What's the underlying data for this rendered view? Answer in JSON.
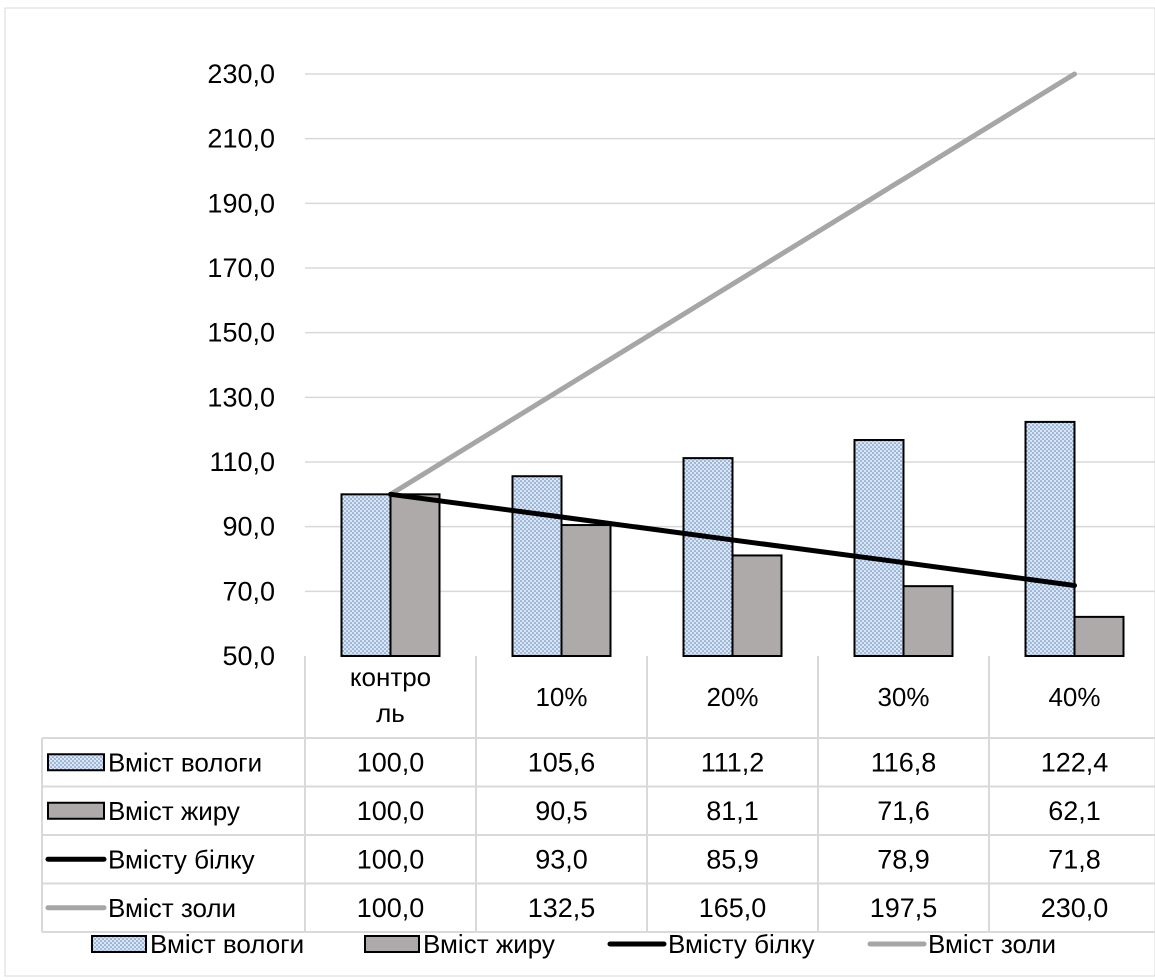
{
  "chart_data": {
    "type": "bar",
    "title": "",
    "xlabel": "",
    "ylabel": "",
    "ylim": [
      50,
      230
    ],
    "yticks": [
      "50,0",
      "70,0",
      "90,0",
      "110,0",
      "130,0",
      "150,0",
      "170,0",
      "190,0",
      "210,0",
      "230,0"
    ],
    "ytick_values": [
      50,
      70,
      90,
      110,
      130,
      150,
      170,
      190,
      210,
      230
    ],
    "grid": true,
    "legend_position": "bottom",
    "categories": [
      [
        "контро",
        "ль"
      ],
      [
        "10%"
      ],
      [
        "20%"
      ],
      [
        "30%"
      ],
      [
        "40%"
      ]
    ],
    "series": [
      {
        "name": "Вміст вологи",
        "kind": "bar",
        "pattern": "dotted",
        "color": "#dce6f2",
        "dot_color": "#4f81bd",
        "values": [
          100.0,
          105.6,
          111.2,
          116.8,
          122.4
        ],
        "labels": [
          "100,0",
          "105,6",
          "111,2",
          "116,8",
          "122,4"
        ]
      },
      {
        "name": "Вміст жиру",
        "kind": "bar",
        "pattern": "solid",
        "color": "#aeaaaa",
        "values": [
          100.0,
          90.5,
          81.1,
          71.6,
          62.1
        ],
        "labels": [
          "100,0",
          "90,5",
          "81,1",
          "71,6",
          "62,1"
        ]
      },
      {
        "name": "Вмісту білку",
        "kind": "line",
        "color": "#000000",
        "values": [
          100.0,
          93.0,
          85.9,
          78.9,
          71.8
        ],
        "labels": [
          "100,0",
          "93,0",
          "85,9",
          "78,9",
          "71,8"
        ]
      },
      {
        "name": "Вміст золи",
        "kind": "line",
        "color": "#a6a6a6",
        "values": [
          100.0,
          132.5,
          165.0,
          197.5,
          230.0
        ],
        "labels": [
          "100,0",
          "132,5",
          "165,0",
          "197,5",
          "230,0"
        ]
      }
    ]
  }
}
